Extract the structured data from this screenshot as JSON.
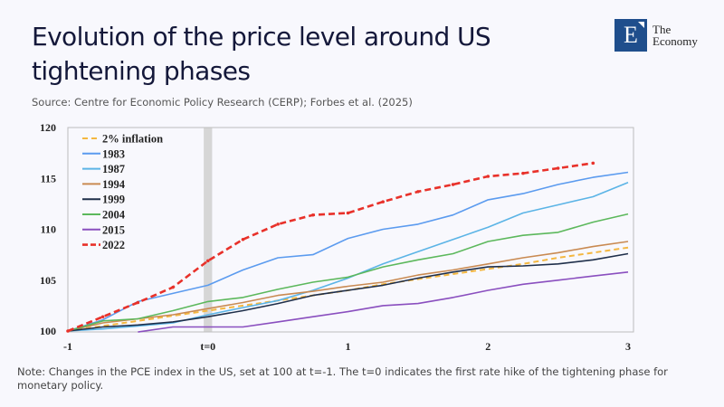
{
  "header": {
    "title": "Evolution of the price level around US tightening phases",
    "source": "Source: Centre for Economic Policy Research (CERP); Forbes et al. (2025)"
  },
  "logo": {
    "letter": "E",
    "line1": "The",
    "line2": "Economy",
    "color": "#1f4e8c"
  },
  "note": "Note: Changes in the PCE index in the US, set at 100 at t=-1. The t=0 indicates the first rate hike of the tightening phase for monetary policy.",
  "chart_data": {
    "type": "line",
    "title": "",
    "xlabel": "",
    "ylabel": "",
    "xlim": [
      -1,
      3
    ],
    "ylim": [
      100,
      120
    ],
    "xticks": [
      {
        "value": -1,
        "label": "-1"
      },
      {
        "value": 0,
        "label": "t=0"
      },
      {
        "value": 1,
        "label": "1"
      },
      {
        "value": 2,
        "label": "2"
      },
      {
        "value": 3,
        "label": "3"
      }
    ],
    "yticks": [
      {
        "value": 100,
        "label": "100"
      },
      {
        "value": 105,
        "label": "105"
      },
      {
        "value": 110,
        "label": "110"
      },
      {
        "value": 115,
        "label": "115"
      },
      {
        "value": 120,
        "label": "120"
      }
    ],
    "grid": false,
    "legend_position": "top-left",
    "shaded_band": {
      "from": -0.03,
      "to": 0.03,
      "color": "#d6d6d6"
    },
    "x": [
      -1,
      -0.75,
      -0.5,
      -0.25,
      0,
      0.25,
      0.5,
      0.75,
      1,
      1.25,
      1.5,
      1.75,
      2,
      2.25,
      2.5,
      2.75,
      3
    ],
    "series": [
      {
        "name": "2% inflation",
        "color": "#f4b740",
        "dash": "dashed",
        "values": [
          100,
          100.5,
          101.0,
          101.5,
          102.0,
          102.5,
          103.0,
          103.5,
          104.0,
          104.6,
          105.1,
          105.6,
          106.1,
          106.6,
          107.2,
          107.7,
          108.2
        ]
      },
      {
        "name": "1983",
        "color": "#5b9bef",
        "dash": "solid",
        "values": [
          100,
          101.1,
          102.9,
          103.7,
          104.5,
          106.0,
          107.2,
          107.5,
          109.1,
          110.0,
          110.5,
          111.4,
          112.9,
          113.5,
          114.4,
          115.1,
          115.6
        ]
      },
      {
        "name": "1987",
        "color": "#5bb4e6",
        "dash": "solid",
        "values": [
          100,
          100.2,
          100.5,
          100.8,
          101.6,
          102.3,
          103.0,
          104.0,
          105.2,
          106.6,
          107.8,
          109.0,
          110.2,
          111.6,
          112.4,
          113.2,
          114.6
        ]
      },
      {
        "name": "1994",
        "color": "#c98a52",
        "dash": "solid",
        "values": [
          100,
          100.8,
          101.2,
          101.6,
          102.2,
          102.8,
          103.5,
          103.9,
          104.4,
          104.8,
          105.5,
          106.0,
          106.6,
          107.2,
          107.7,
          108.3,
          108.8
        ]
      },
      {
        "name": "1999",
        "color": "#1f2f4a",
        "dash": "solid",
        "values": [
          100,
          100.4,
          100.6,
          100.9,
          101.4,
          102.0,
          102.7,
          103.5,
          104.0,
          104.5,
          105.2,
          105.8,
          106.3,
          106.4,
          106.6,
          107.0,
          107.6
        ]
      },
      {
        "name": "2004",
        "color": "#5cb85c",
        "dash": "solid",
        "values": [
          100,
          101.0,
          101.2,
          102.0,
          102.9,
          103.3,
          104.1,
          104.8,
          105.3,
          106.3,
          107.0,
          107.6,
          108.8,
          109.4,
          109.7,
          110.7,
          111.5
        ]
      },
      {
        "name": "2015",
        "color": "#8a4fbf",
        "dash": "solid",
        "values": [
          null,
          null,
          99.9,
          100.4,
          100.4,
          100.4,
          100.9,
          101.4,
          101.9,
          102.5,
          102.7,
          103.3,
          104.0,
          104.6,
          105.0,
          105.4,
          105.8
        ]
      },
      {
        "name": "2022",
        "color": "#e8312a",
        "dash": "dash-dot-marker",
        "values": [
          100,
          101.4,
          102.8,
          104.3,
          106.9,
          109.0,
          110.5,
          111.4,
          111.6,
          112.7,
          113.7,
          114.4,
          115.2,
          115.5,
          116.0,
          116.5,
          null
        ]
      }
    ]
  }
}
